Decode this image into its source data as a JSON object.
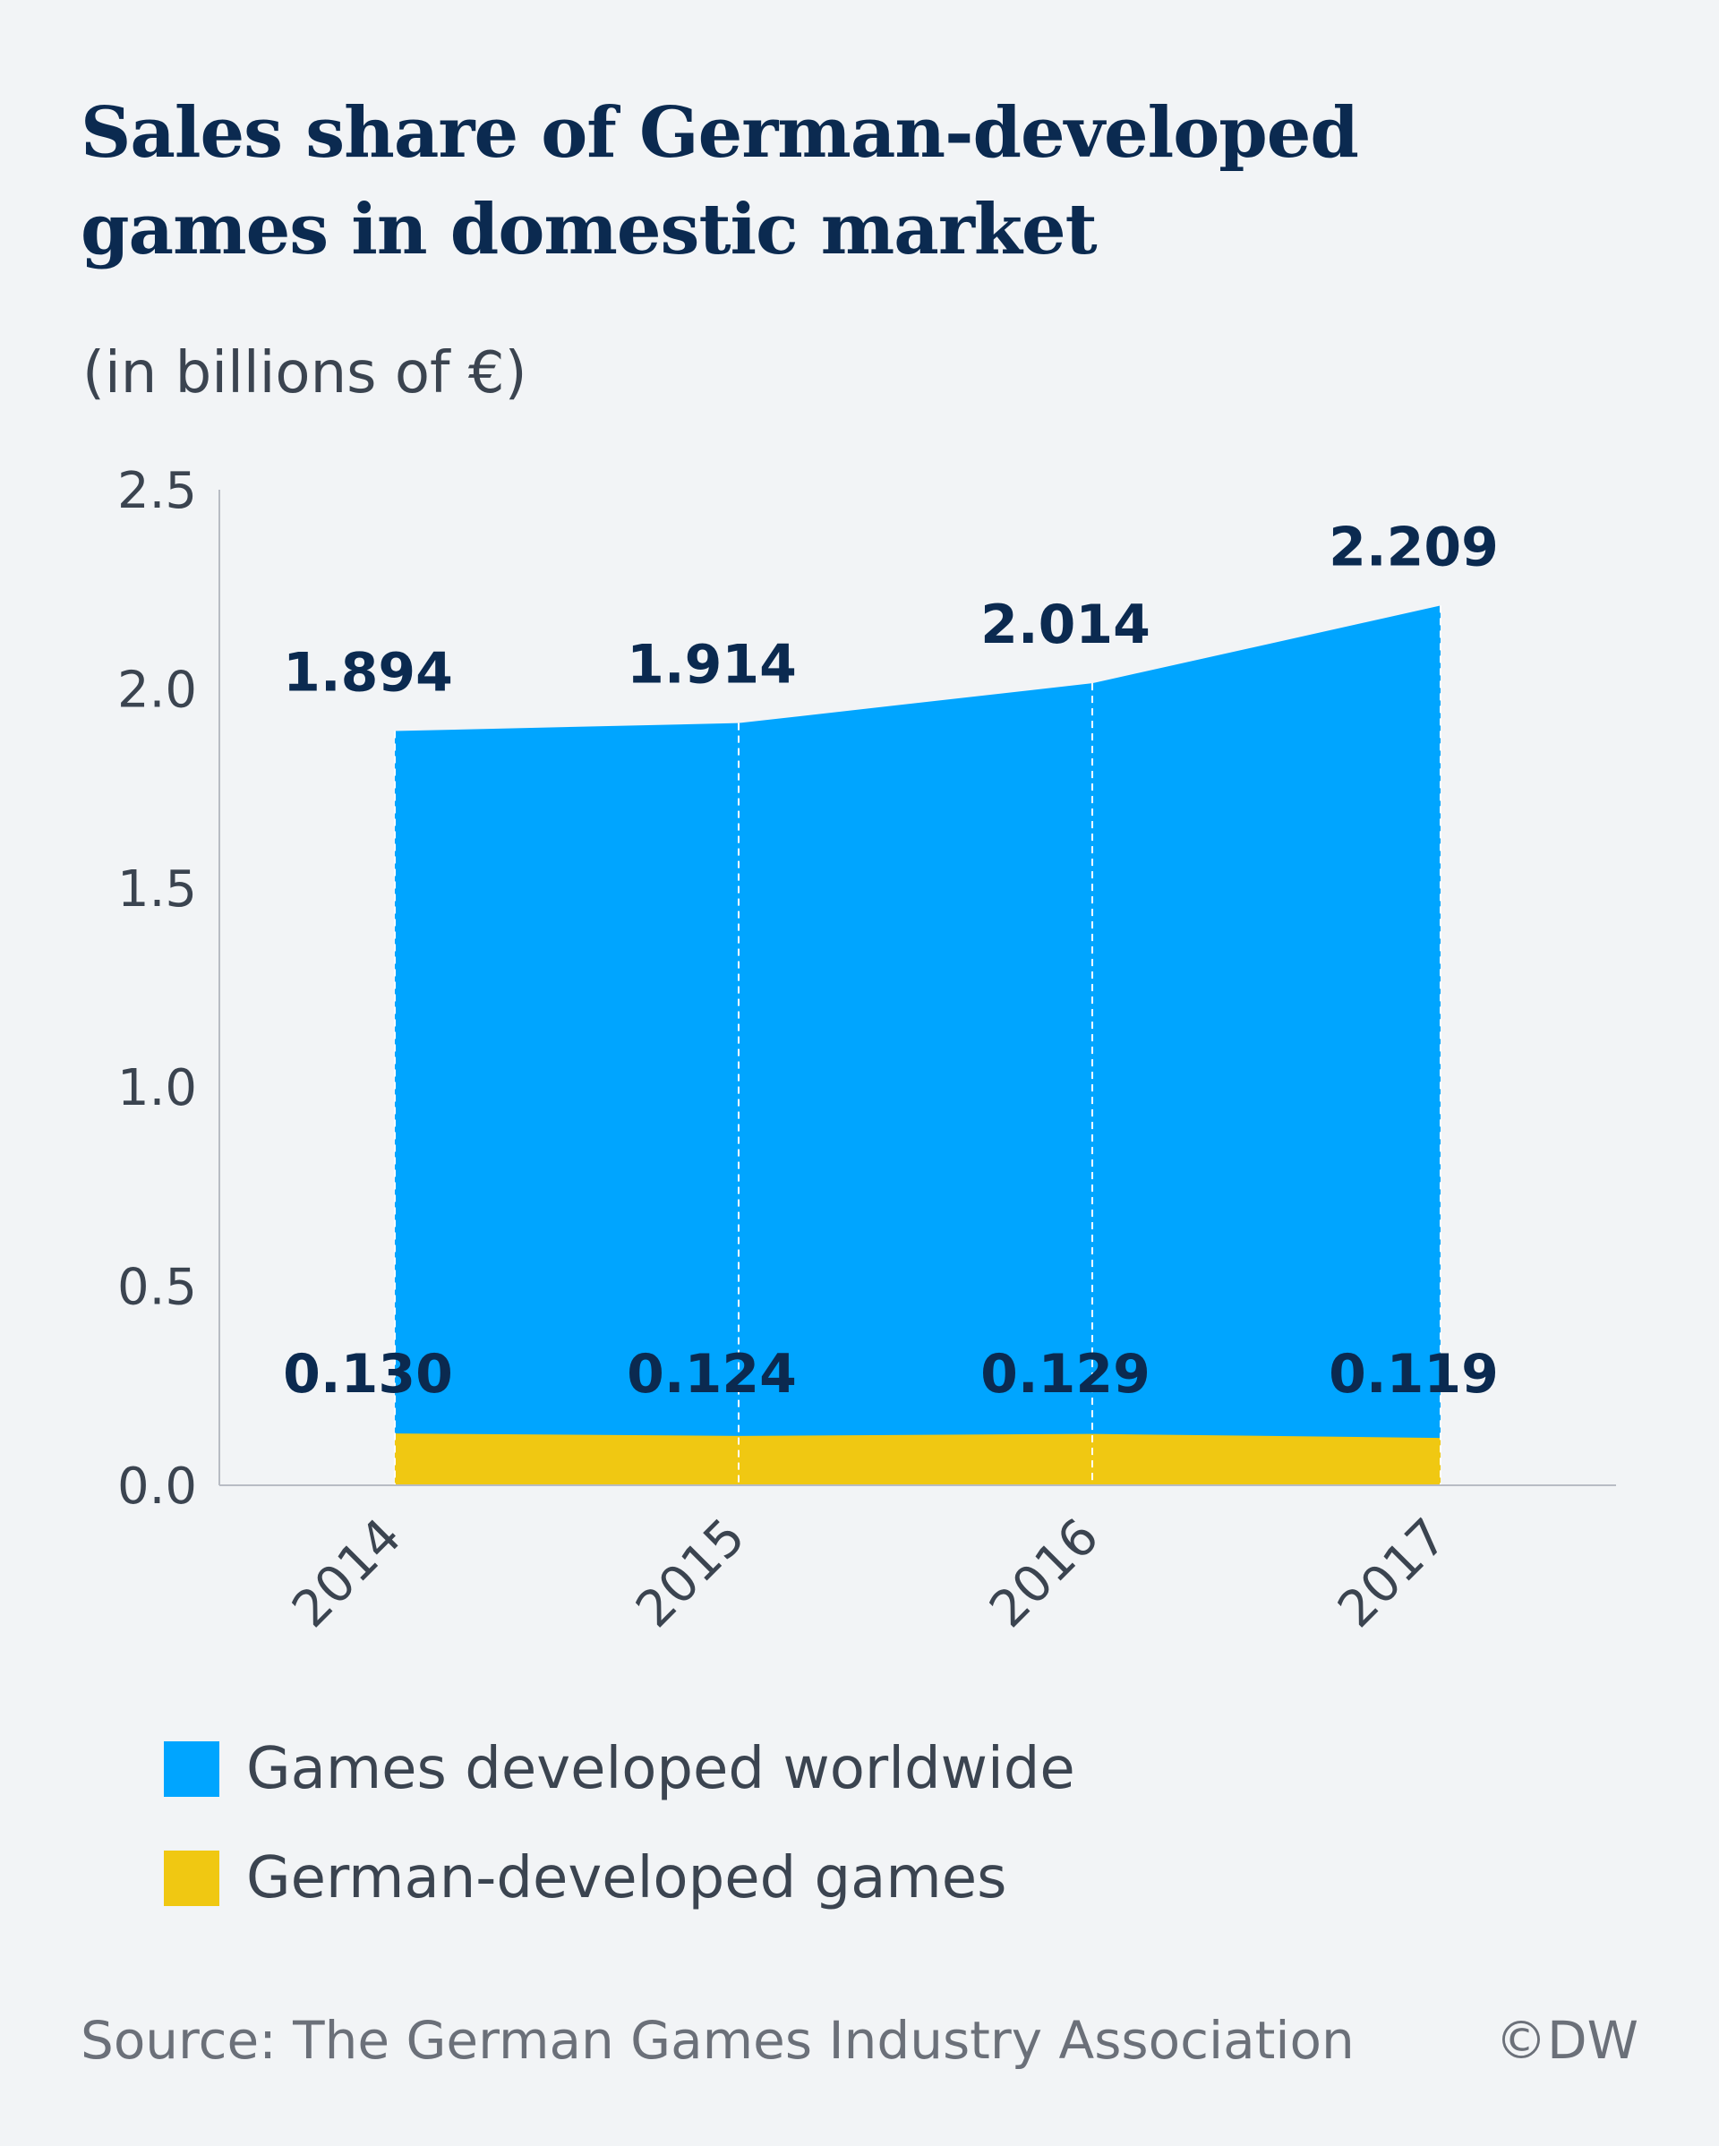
{
  "title_lines": [
    "Sales share of German-developed",
    "games in domestic market"
  ],
  "subtitle": "(in billions of €)",
  "chart_data": {
    "type": "area",
    "stacked": false,
    "categories": [
      "2014",
      "2015",
      "2016",
      "2017"
    ],
    "series": [
      {
        "name": "Games developed worldwide",
        "values": [
          1.894,
          1.914,
          2.014,
          2.209
        ],
        "labels": [
          "1.894",
          "1.914",
          "2.014",
          "2.209"
        ],
        "color": "#00a5ff"
      },
      {
        "name": "German-developed games",
        "values": [
          0.13,
          0.124,
          0.129,
          0.119
        ],
        "labels": [
          "0.130",
          "0.124",
          "0.129",
          "0.119"
        ],
        "color": "#f0c812"
      }
    ],
    "ylim": [
      0,
      2.5
    ],
    "yticks": [
      "0.0",
      "0.5",
      "1.0",
      "1.5",
      "2.0",
      "2.5"
    ],
    "grid": false,
    "legend": "bottom"
  },
  "source": "Source: The German Games Industry Association",
  "credit": "©DW"
}
